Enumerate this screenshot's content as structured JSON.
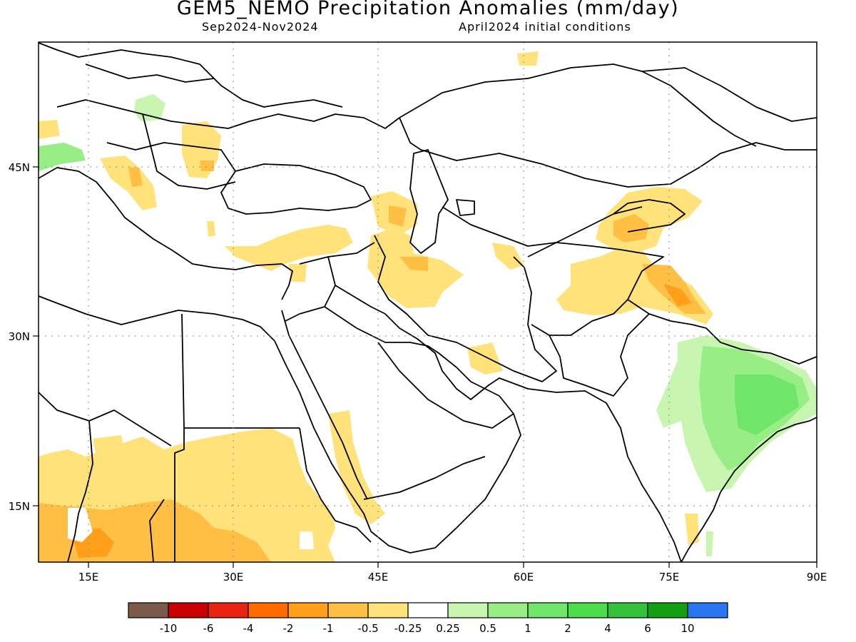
{
  "title": "GEM5_NEMO Precipitation Anomalies (mm/day)",
  "period": "Sep2024-Nov2024",
  "init": "April2024 initial conditions",
  "axes": {
    "lon_ticks": [
      "15E",
      "30E",
      "45E",
      "60E",
      "75E",
      "90E"
    ],
    "lat_ticks": [
      "45N",
      "30N",
      "15N"
    ]
  },
  "colorbar": {
    "colors": [
      "#7b5a4a",
      "#c80000",
      "#e8230f",
      "#ff6a00",
      "#ff9f1a",
      "#ffbf45",
      "#ffe27a",
      "#ffffff",
      "#c8f5b0",
      "#96ee85",
      "#6fe66a",
      "#4cdc4c",
      "#33c13a",
      "#12a012",
      "#2a75f2"
    ],
    "labels": [
      "-10",
      "-6",
      "-4",
      "-2",
      "-1",
      "-0.5",
      "-0.25",
      "0.25",
      "0.5",
      "1",
      "2",
      "4",
      "6",
      "10"
    ]
  }
}
